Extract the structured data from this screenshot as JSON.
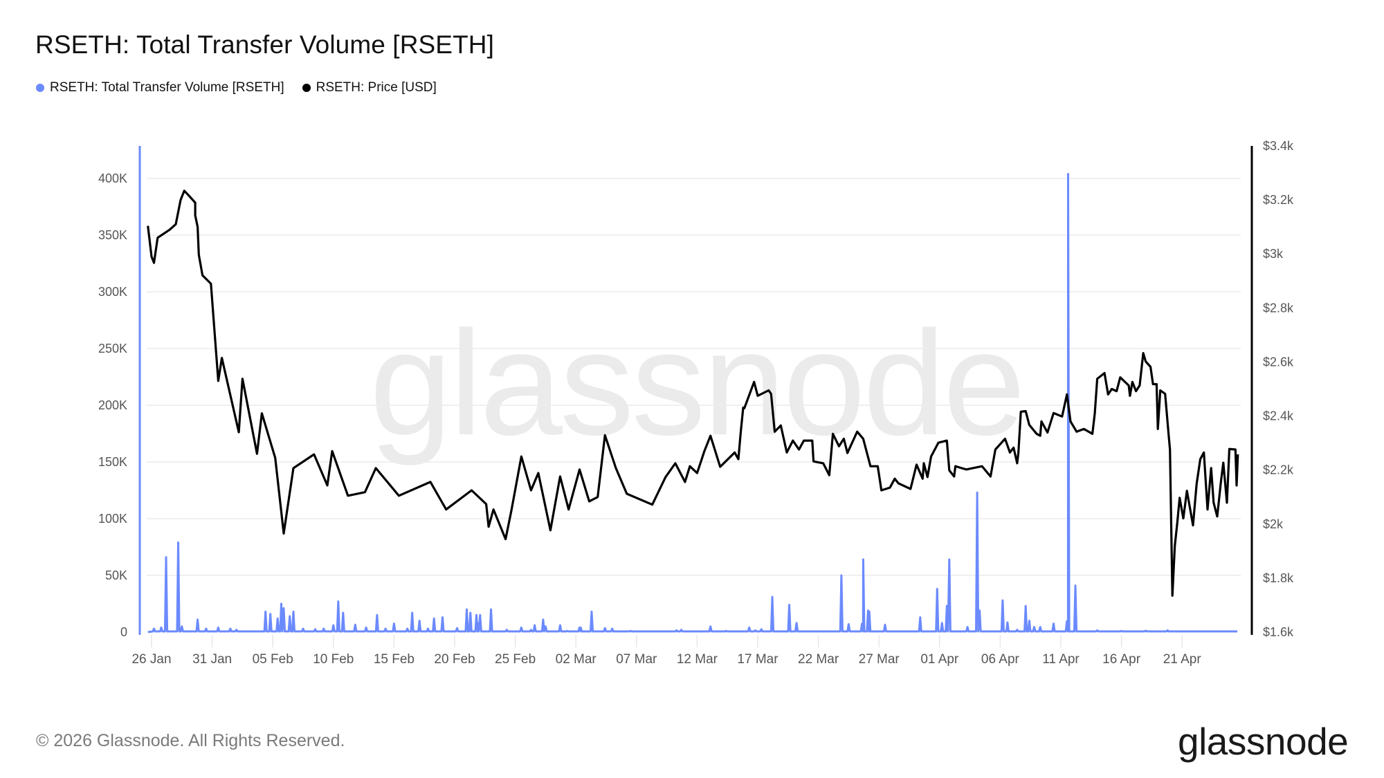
{
  "header": {
    "title": "RSETH: Total Transfer Volume [RSETH]"
  },
  "legend": [
    {
      "label": "RSETH: Total Transfer Volume [RSETH]",
      "color": "#6b8afd"
    },
    {
      "label": "RSETH: Price [USD]",
      "color": "#000000"
    }
  ],
  "watermark": "glassnode",
  "footer": {
    "copyright": "© 2026 Glassnode. All Rights Reserved.",
    "logo": "glassnode"
  },
  "colors": {
    "volume": "#6b8afd",
    "price": "#000000",
    "grid": "#ececec",
    "axis_text": "#555555",
    "watermark": "#ebebeb"
  },
  "chart_data": {
    "type": "line",
    "title": "RSETH: Total Transfer Volume [RSETH]",
    "xlabel": "",
    "legend_position": "top-left",
    "grid": true,
    "x_ticks": [
      "26 Jan",
      "31 Jan",
      "05 Feb",
      "10 Feb",
      "15 Feb",
      "20 Feb",
      "25 Feb",
      "02 Mar",
      "07 Mar",
      "12 Mar",
      "17 Mar",
      "22 Mar",
      "27 Mar",
      "01 Apr",
      "06 Apr",
      "11 Apr",
      "16 Apr",
      "21 Apr"
    ],
    "x_range": [
      "25 Jan",
      "25 Apr"
    ],
    "y_left": {
      "label": "RSETH: Total Transfer Volume [RSETH]",
      "ticks": [
        "0",
        "50K",
        "100K",
        "150K",
        "200K",
        "250K",
        "300K",
        "350K",
        "400K"
      ],
      "ylim": [
        0,
        430000
      ]
    },
    "y_right": {
      "label": "RSETH: Price [USD]",
      "ticks": [
        "$1.6k",
        "$1.8k",
        "$2k",
        "$2.2k",
        "$2.4k",
        "$2.6k",
        "$2.8k",
        "$3k",
        "$3.2k",
        "$3.4k"
      ],
      "ylim": [
        1600,
        3400
      ]
    },
    "series": [
      {
        "name": "RSETH: Total Transfer Volume [RSETH]",
        "axis": "left",
        "color": "#6b8afd",
        "type": "spikes",
        "note": "day offsets from 26 Jan; values in RSETH",
        "points": [
          [
            -0.4,
            430000
          ],
          [
            -0.3,
            0
          ],
          [
            0.2,
            3000
          ],
          [
            0.8,
            4000
          ],
          [
            1.2,
            66000
          ],
          [
            2.2,
            79000
          ],
          [
            2.5,
            5000
          ],
          [
            3.8,
            11000
          ],
          [
            4.5,
            3000
          ],
          [
            5.5,
            4000
          ],
          [
            6.5,
            3000
          ],
          [
            7.0,
            2000
          ],
          [
            9.4,
            18000
          ],
          [
            9.8,
            16000
          ],
          [
            10.4,
            12000
          ],
          [
            10.7,
            25000
          ],
          [
            10.9,
            21000
          ],
          [
            11.4,
            14000
          ],
          [
            11.7,
            18000
          ],
          [
            12.5,
            3000
          ],
          [
            13.5,
            2500
          ],
          [
            14.2,
            3000
          ],
          [
            15.0,
            6000
          ],
          [
            15.4,
            27000
          ],
          [
            15.8,
            17000
          ],
          [
            16.8,
            6500
          ],
          [
            17.7,
            4000
          ],
          [
            18.6,
            15000
          ],
          [
            19.3,
            3000
          ],
          [
            20.0,
            7500
          ],
          [
            21.1,
            3000
          ],
          [
            21.5,
            17000
          ],
          [
            22.1,
            10000
          ],
          [
            22.8,
            3000
          ],
          [
            23.3,
            12000
          ],
          [
            24.0,
            13000
          ],
          [
            25.2,
            3500
          ],
          [
            26.0,
            20000
          ],
          [
            26.3,
            17000
          ],
          [
            26.8,
            15000
          ],
          [
            26.9,
            8000
          ],
          [
            27.1,
            15000
          ],
          [
            28.0,
            20000
          ],
          [
            29.3,
            2000
          ],
          [
            30.5,
            4000
          ],
          [
            31.3,
            2000
          ],
          [
            31.6,
            6000
          ],
          [
            32.3,
            11000
          ],
          [
            32.5,
            5000
          ],
          [
            33.7,
            6000
          ],
          [
            34.3,
            1000
          ],
          [
            35.3,
            4000
          ],
          [
            35.4,
            4000
          ],
          [
            36.3,
            18000
          ],
          [
            37.4,
            3500
          ],
          [
            38.0,
            3000
          ],
          [
            39.5,
            1000
          ],
          [
            43.3,
            1500
          ],
          [
            43.7,
            2000
          ],
          [
            46.1,
            5000
          ],
          [
            47.4,
            1000
          ],
          [
            49.3,
            4000
          ],
          [
            49.8,
            1500
          ],
          [
            50.3,
            2500
          ],
          [
            51.2,
            31000
          ],
          [
            52.6,
            24000
          ],
          [
            53.2,
            8000
          ],
          [
            56.9,
            50000
          ],
          [
            57.5,
            7000
          ],
          [
            58.6,
            7500
          ],
          [
            58.7,
            64000
          ],
          [
            59.1,
            19000
          ],
          [
            59.2,
            18000
          ],
          [
            60.5,
            6500
          ],
          [
            63.4,
            13000
          ],
          [
            64.8,
            38000
          ],
          [
            65.2,
            8000
          ],
          [
            65.6,
            23000
          ],
          [
            65.8,
            64000
          ],
          [
            67.3,
            4500
          ],
          [
            68.1,
            123000
          ],
          [
            68.3,
            19000
          ],
          [
            70.2,
            28000
          ],
          [
            70.6,
            8500
          ],
          [
            71.4,
            2000
          ],
          [
            72.1,
            23000
          ],
          [
            72.4,
            10000
          ],
          [
            72.8,
            4500
          ],
          [
            73.3,
            4500
          ],
          [
            74.4,
            7500
          ],
          [
            75.5,
            9500
          ],
          [
            75.6,
            404000
          ],
          [
            76.2,
            41000
          ],
          [
            78.0,
            1500
          ],
          [
            80.0,
            1000
          ],
          [
            82.0,
            1200
          ],
          [
            83.8,
            1500
          ]
        ]
      },
      {
        "name": "RSETH: Price [USD]",
        "axis": "right",
        "color": "#000000",
        "type": "line",
        "note": "day offsets from 26 Jan; price in USD",
        "points": [
          [
            -0.3,
            3104
          ],
          [
            0.0,
            2990
          ],
          [
            0.2,
            2967
          ],
          [
            0.5,
            3060
          ],
          [
            1.0,
            3075
          ],
          [
            1.5,
            3090
          ],
          [
            2.0,
            3110
          ],
          [
            2.4,
            3200
          ],
          [
            2.7,
            3234
          ],
          [
            3.1,
            3215
          ],
          [
            3.6,
            3190
          ],
          [
            3.6,
            3143
          ],
          [
            3.8,
            3100
          ],
          [
            3.9,
            2997
          ],
          [
            4.2,
            2921
          ],
          [
            4.9,
            2890
          ],
          [
            5.5,
            2530
          ],
          [
            5.8,
            2615
          ],
          [
            7.2,
            2340
          ],
          [
            7.5,
            2538
          ],
          [
            8.7,
            2260
          ],
          [
            9.1,
            2410
          ],
          [
            10.2,
            2245
          ],
          [
            10.9,
            1965
          ],
          [
            11.7,
            2207
          ],
          [
            13.4,
            2258
          ],
          [
            14.5,
            2143
          ],
          [
            14.9,
            2270
          ],
          [
            16.2,
            2105
          ],
          [
            17.6,
            2118
          ],
          [
            18.5,
            2207
          ],
          [
            20.4,
            2105
          ],
          [
            23.0,
            2156
          ],
          [
            24.3,
            2054
          ],
          [
            26.4,
            2125
          ],
          [
            27.6,
            2074
          ],
          [
            27.8,
            1990
          ],
          [
            28.2,
            2054
          ],
          [
            29.2,
            1944
          ],
          [
            29.7,
            2054
          ],
          [
            30.5,
            2250
          ],
          [
            31.3,
            2125
          ],
          [
            31.9,
            2189
          ],
          [
            32.9,
            1977
          ],
          [
            33.7,
            2176
          ],
          [
            34.4,
            2054
          ],
          [
            35.3,
            2202
          ],
          [
            36.1,
            2084
          ],
          [
            36.8,
            2100
          ],
          [
            37.4,
            2329
          ],
          [
            38.3,
            2207
          ],
          [
            39.2,
            2112
          ],
          [
            41.3,
            2072
          ],
          [
            42.4,
            2174
          ],
          [
            43.2,
            2225
          ],
          [
            44.0,
            2156
          ],
          [
            44.4,
            2214
          ],
          [
            45.0,
            2189
          ],
          [
            45.6,
            2270
          ],
          [
            46.1,
            2327
          ],
          [
            46.9,
            2212
          ],
          [
            48.1,
            2265
          ],
          [
            48.4,
            2240
          ],
          [
            48.6,
            2342
          ],
          [
            48.8,
            2431
          ],
          [
            48.9,
            2429
          ],
          [
            49.7,
            2526
          ],
          [
            50.0,
            2475
          ],
          [
            50.9,
            2495
          ],
          [
            51.1,
            2482
          ],
          [
            51.4,
            2342
          ],
          [
            51.9,
            2365
          ],
          [
            52.4,
            2265
          ],
          [
            52.9,
            2309
          ],
          [
            53.4,
            2276
          ],
          [
            53.8,
            2309
          ],
          [
            54.5,
            2309
          ],
          [
            54.6,
            2232
          ],
          [
            55.4,
            2225
          ],
          [
            55.9,
            2181
          ],
          [
            56.2,
            2334
          ],
          [
            56.7,
            2288
          ],
          [
            57.1,
            2316
          ],
          [
            57.4,
            2263
          ],
          [
            58.2,
            2342
          ],
          [
            58.7,
            2316
          ],
          [
            59.3,
            2214
          ],
          [
            59.9,
            2214
          ],
          [
            60.2,
            2125
          ],
          [
            60.9,
            2135
          ],
          [
            61.3,
            2168
          ],
          [
            61.6,
            2151
          ],
          [
            62.6,
            2130
          ],
          [
            63.1,
            2220
          ],
          [
            63.6,
            2168
          ],
          [
            63.7,
            2225
          ],
          [
            64.0,
            2174
          ],
          [
            64.3,
            2250
          ],
          [
            64.9,
            2301
          ],
          [
            65.6,
            2309
          ],
          [
            65.8,
            2199
          ],
          [
            66.2,
            2176
          ],
          [
            66.3,
            2214
          ],
          [
            67.2,
            2202
          ],
          [
            68.5,
            2214
          ],
          [
            69.2,
            2176
          ],
          [
            69.6,
            2276
          ],
          [
            70.4,
            2316
          ],
          [
            70.8,
            2265
          ],
          [
            71.1,
            2283
          ],
          [
            71.4,
            2225
          ],
          [
            71.5,
            2265
          ],
          [
            71.7,
            2416
          ],
          [
            72.1,
            2418
          ],
          [
            72.4,
            2367
          ],
          [
            73.0,
            2334
          ],
          [
            73.3,
            2327
          ],
          [
            73.4,
            2380
          ],
          [
            73.9,
            2339
          ],
          [
            74.4,
            2411
          ],
          [
            75.1,
            2398
          ],
          [
            75.5,
            2480
          ],
          [
            75.8,
            2380
          ],
          [
            76.3,
            2342
          ],
          [
            76.9,
            2352
          ],
          [
            77.6,
            2334
          ],
          [
            77.8,
            2411
          ],
          [
            78.0,
            2538
          ],
          [
            78.6,
            2559
          ],
          [
            78.9,
            2480
          ],
          [
            79.2,
            2500
          ],
          [
            79.6,
            2492
          ],
          [
            79.9,
            2543
          ],
          [
            80.6,
            2513
          ],
          [
            80.7,
            2475
          ],
          [
            80.9,
            2526
          ],
          [
            81.2,
            2492
          ],
          [
            81.5,
            2513
          ],
          [
            81.8,
            2633
          ],
          [
            82.0,
            2602
          ],
          [
            82.4,
            2582
          ],
          [
            82.6,
            2518
          ],
          [
            82.9,
            2518
          ],
          [
            83.0,
            2352
          ],
          [
            83.2,
            2495
          ],
          [
            83.6,
            2482
          ],
          [
            83.9,
            2327
          ],
          [
            84.0,
            2276
          ],
          [
            84.2,
            1735
          ],
          [
            84.4,
            1919
          ],
          [
            84.6,
            2003
          ],
          [
            84.8,
            2097
          ],
          [
            85.1,
            2021
          ],
          [
            85.4,
            2123
          ],
          [
            85.9,
            1995
          ],
          [
            86.2,
            2148
          ],
          [
            86.5,
            2240
          ],
          [
            86.8,
            2265
          ],
          [
            87.1,
            2054
          ],
          [
            87.4,
            2207
          ],
          [
            87.6,
            2079
          ],
          [
            87.9,
            2028
          ],
          [
            88.2,
            2156
          ],
          [
            88.4,
            2227
          ],
          [
            88.7,
            2079
          ],
          [
            88.9,
            2278
          ],
          [
            89.4,
            2276
          ],
          [
            89.5,
            2143
          ],
          [
            89.6,
            2258
          ]
        ]
      }
    ]
  }
}
